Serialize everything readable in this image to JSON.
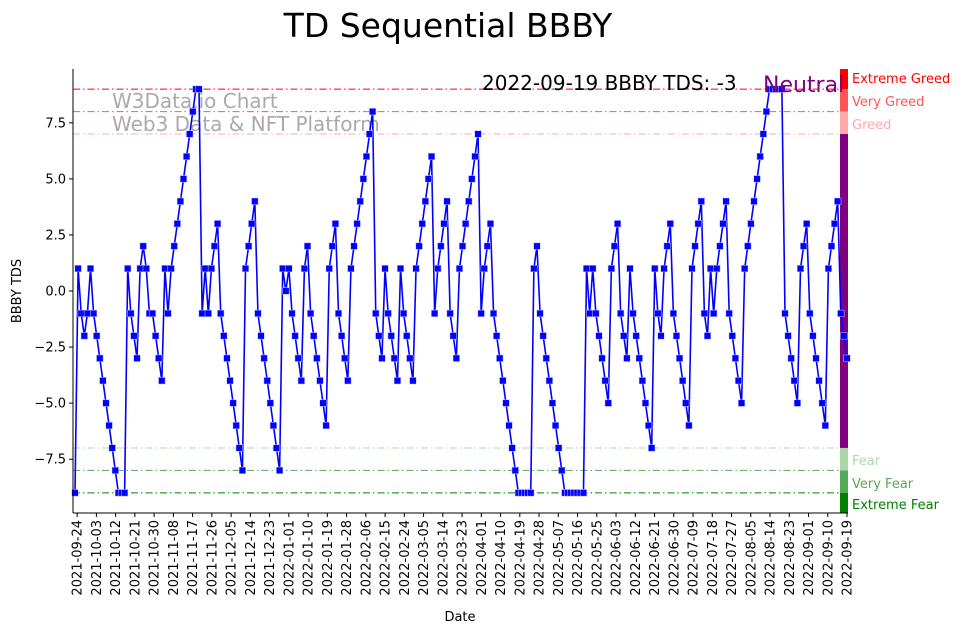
{
  "chart_data": {
    "type": "line",
    "title": "TD Sequential BBBY",
    "xlabel": "Date",
    "ylabel": "BBBY TDS",
    "ylim": [
      -9.9,
      9.9
    ],
    "yticks": [
      -7.5,
      -5.0,
      -2.5,
      0.0,
      2.5,
      5.0,
      7.5
    ],
    "ytick_labels": [
      "−7.5",
      "−5.0",
      "−2.5",
      "0.0",
      "2.5",
      "5.0",
      "7.5"
    ],
    "xtick_labels": [
      "2021-09-24",
      "2021-10-03",
      "2021-10-12",
      "2021-10-21",
      "2021-10-30",
      "2021-11-08",
      "2021-11-17",
      "2021-11-26",
      "2021-12-05",
      "2021-12-14",
      "2021-12-23",
      "2022-01-01",
      "2022-01-10",
      "2022-01-19",
      "2022-01-28",
      "2022-02-06",
      "2022-02-15",
      "2022-02-24",
      "2022-03-05",
      "2022-03-14",
      "2022-03-23",
      "2022-04-01",
      "2022-04-10",
      "2022-04-19",
      "2022-04-28",
      "2022-05-07",
      "2022-05-16",
      "2022-05-25",
      "2022-06-03",
      "2022-06-12",
      "2022-06-21",
      "2022-06-30",
      "2022-07-09",
      "2022-07-18",
      "2022-07-27",
      "2022-08-05",
      "2022-08-14",
      "2022-08-23",
      "2022-09-01",
      "2022-09-10",
      "2022-09-19"
    ],
    "x_range": [
      "2021-09-23",
      "2022-09-19"
    ],
    "grid": false,
    "series": [
      {
        "name": "BBBY TDS",
        "color": "#0000ff",
        "values": [
          -9,
          1,
          -1,
          -2,
          -1,
          1,
          -1,
          -2,
          -3,
          -4,
          -5,
          -6,
          -7,
          -8,
          -9,
          -9,
          -9,
          1,
          -1,
          -2,
          -3,
          1,
          2,
          1,
          -1,
          -1,
          -2,
          -3,
          -4,
          1,
          -1,
          1,
          2,
          3,
          4,
          5,
          6,
          7,
          8,
          9,
          9,
          -1,
          1,
          -1,
          1,
          2,
          3,
          -1,
          -2,
          -3,
          -4,
          -5,
          -6,
          -7,
          -8,
          1,
          2,
          3,
          4,
          -1,
          -2,
          -3,
          -4,
          -5,
          -6,
          -7,
          -8,
          1,
          0,
          1,
          -1,
          -2,
          -3,
          -4,
          1,
          2,
          -1,
          -2,
          -3,
          -4,
          -5,
          -6,
          1,
          2,
          3,
          -1,
          -2,
          -3,
          -4,
          1,
          2,
          3,
          4,
          5,
          6,
          7,
          8,
          -1,
          -2,
          -3,
          1,
          -1,
          -2,
          -3,
          -4,
          1,
          -1,
          -2,
          -3,
          -4,
          1,
          2,
          3,
          4,
          5,
          6,
          -1,
          1,
          2,
          3,
          4,
          -1,
          -2,
          -3,
          1,
          2,
          3,
          4,
          5,
          6,
          7,
          -1,
          1,
          2,
          3,
          -1,
          -2,
          -3,
          -4,
          -5,
          -6,
          -7,
          -8,
          -9,
          -9,
          -9,
          -9,
          -9,
          1,
          2,
          -1,
          -2,
          -3,
          -4,
          -5,
          -6,
          -7,
          -8,
          -9,
          -9,
          -9,
          -9,
          -9,
          -9,
          -9,
          1,
          -1,
          1,
          -1,
          -2,
          -3,
          -4,
          -5,
          1,
          2,
          3,
          -1,
          -2,
          -3,
          1,
          -1,
          -2,
          -3,
          -4,
          -5,
          -6,
          -7,
          1,
          -1,
          -2,
          1,
          2,
          3,
          -1,
          -2,
          -3,
          -4,
          -5,
          -6,
          1,
          2,
          3,
          4,
          -1,
          -2,
          1,
          -1,
          1,
          2,
          3,
          4,
          -1,
          -2,
          -3,
          -4,
          -5,
          1,
          2,
          3,
          4,
          5,
          6,
          7,
          8,
          9,
          9,
          9,
          9,
          9,
          -1,
          -2,
          -3,
          -4,
          -5,
          1,
          2,
          3,
          -1,
          -2,
          -3,
          -4,
          -5,
          -6,
          1,
          2,
          3,
          4,
          -1,
          -2,
          -3
        ]
      }
    ],
    "thresholds": [
      {
        "value": 9,
        "label": "Extreme Greed",
        "color": "#ff0000"
      },
      {
        "value": 8,
        "label": "Very Greed",
        "color": "#ff5555"
      },
      {
        "value": 7,
        "label": "Greed",
        "color": "#ffaaaa"
      },
      {
        "value": -7,
        "label": "Fear",
        "color": "#aad8aa"
      },
      {
        "value": -8,
        "label": "Very Fear",
        "color": "#55aa55"
      },
      {
        "value": -9,
        "label": "Extreme Fear",
        "color": "#008000"
      }
    ],
    "neutral_color": "#800080",
    "annotation": "2022-09-19 BBBY TDS: -3",
    "status": "Neutral",
    "watermark": [
      "W3Data.io Chart",
      "Web3 Data & NFT Platform"
    ]
  }
}
